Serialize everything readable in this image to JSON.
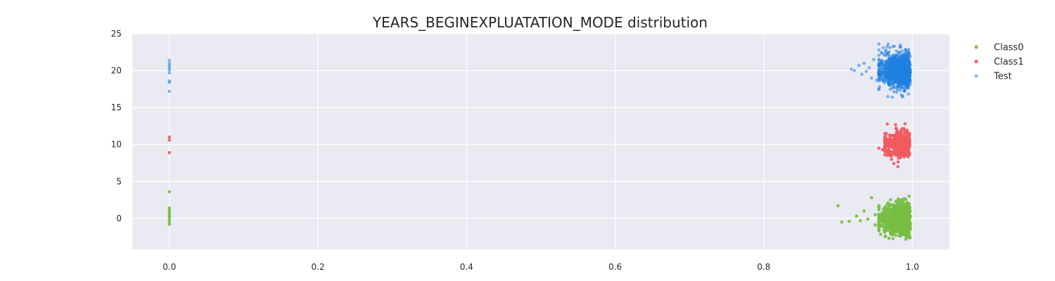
{
  "chart_data": {
    "type": "scatter",
    "title": "YEARS_BEGINEXPLUATATION_MODE distribution",
    "xlabel": "",
    "ylabel": "",
    "xlim": [
      -0.05,
      1.05
    ],
    "ylim": [
      -4.2,
      25
    ],
    "xticks": [
      0.0,
      0.2,
      0.4,
      0.6,
      0.8,
      1.0
    ],
    "xtick_labels": [
      "0.0",
      "0.2",
      "0.4",
      "0.6",
      "0.8",
      "1.0"
    ],
    "yticks": [
      0,
      5,
      10,
      15,
      20,
      25
    ],
    "ytick_labels": [
      "0",
      "5",
      "10",
      "15",
      "20",
      "25"
    ],
    "grid": true,
    "legend_position": "top-right outside",
    "series": [
      {
        "name": "Class0",
        "color": "#78be44",
        "zero_points": [
          [
            0,
            3.6
          ],
          [
            0,
            1.4
          ],
          [
            0,
            1.1
          ],
          [
            0,
            0.8
          ],
          [
            0,
            0.5
          ],
          [
            0,
            0.3
          ],
          [
            0,
            0.1
          ],
          [
            0,
            -0.2
          ],
          [
            0,
            -0.5
          ],
          [
            0,
            -0.8
          ]
        ],
        "outliers": [
          [
            0.9,
            1.7
          ],
          [
            0.905,
            -0.5
          ],
          [
            0.915,
            -0.4
          ],
          [
            0.925,
            0.3
          ],
          [
            0.93,
            -0.3
          ],
          [
            0.935,
            1.0
          ],
          [
            0.94,
            -0.1
          ],
          [
            0.945,
            2.8
          ],
          [
            0.95,
            0.5
          ],
          [
            0.95,
            -0.9
          ]
        ],
        "cluster": {
          "x_center": 0.982,
          "x_min": 0.955,
          "x_max": 0.998,
          "y_center": 0.0,
          "y_spread": 3.0,
          "count": 1100
        }
      },
      {
        "name": "Class1",
        "color": "#f15a5f",
        "zero_points": [
          [
            0,
            11.0
          ],
          [
            0,
            10.6
          ],
          [
            0,
            8.9
          ]
        ],
        "outliers": [
          [
            0.955,
            9.5
          ],
          [
            0.96,
            9.3
          ],
          [
            0.965,
            11.5
          ],
          [
            0.965,
            9.1
          ],
          [
            0.97,
            10.9
          ],
          [
            0.972,
            8.0
          ]
        ],
        "cluster": {
          "x_center": 0.982,
          "x_min": 0.963,
          "x_max": 0.998,
          "y_center": 10.0,
          "y_spread": 3.0,
          "count": 450
        }
      },
      {
        "name": "Test",
        "color": "#1f7fe0",
        "zero_points": [
          [
            0,
            21.4
          ],
          [
            0,
            21.0
          ],
          [
            0,
            20.7
          ],
          [
            0,
            20.4
          ],
          [
            0,
            20.1
          ],
          [
            0,
            19.7
          ],
          [
            0,
            18.6
          ],
          [
            0,
            18.4
          ],
          [
            0,
            17.2
          ]
        ],
        "outliers": [
          [
            0.918,
            20.2
          ],
          [
            0.922,
            20.0
          ],
          [
            0.928,
            20.7
          ],
          [
            0.932,
            19.5
          ],
          [
            0.935,
            21.0
          ],
          [
            0.938,
            19.9
          ],
          [
            0.942,
            20.4
          ],
          [
            0.945,
            19.0
          ],
          [
            0.948,
            21.5
          ],
          [
            0.952,
            18.7
          ]
        ],
        "cluster": {
          "x_center": 0.982,
          "x_min": 0.955,
          "x_max": 0.998,
          "y_center": 20.0,
          "y_spread": 3.6,
          "count": 1300
        }
      }
    ]
  }
}
